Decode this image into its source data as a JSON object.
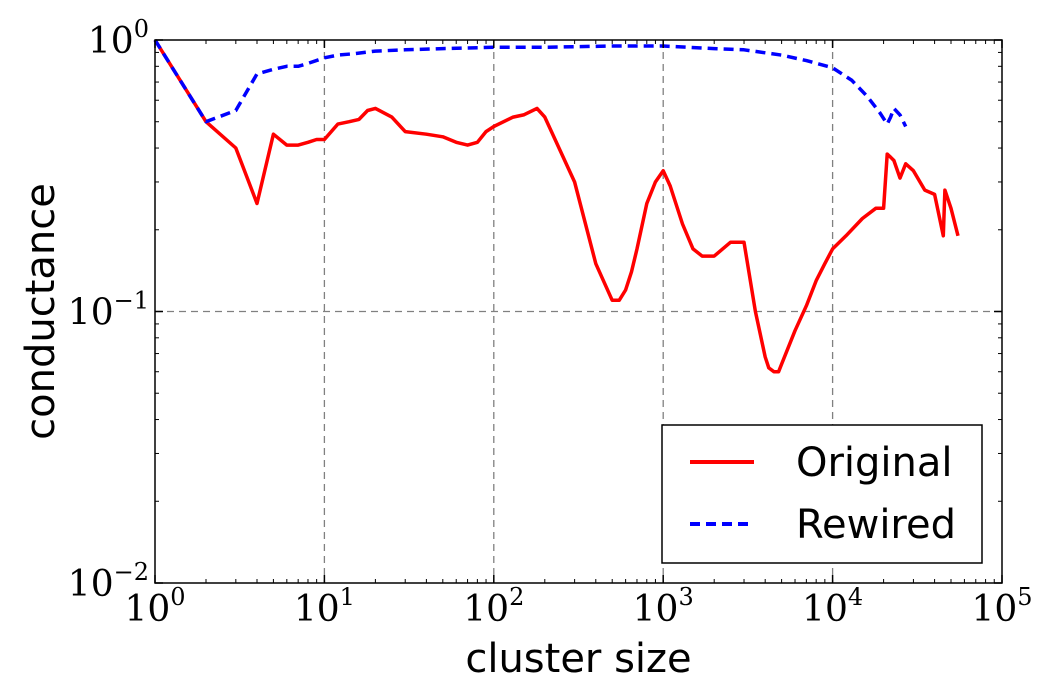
{
  "chart_data": {
    "type": "line",
    "title": "",
    "xlabel": "cluster size",
    "ylabel": "conductance",
    "xscale": "log",
    "yscale": "log",
    "xlim": [
      1,
      100000
    ],
    "ylim": [
      0.01,
      1
    ],
    "grid": true,
    "legend_position": "bottom-right",
    "x_ticks": [
      {
        "value": 1,
        "base": "10",
        "exp": "0"
      },
      {
        "value": 10,
        "base": "10",
        "exp": "1"
      },
      {
        "value": 100,
        "base": "10",
        "exp": "2"
      },
      {
        "value": 1000,
        "base": "10",
        "exp": "3"
      },
      {
        "value": 10000,
        "base": "10",
        "exp": "4"
      },
      {
        "value": 100000,
        "base": "10",
        "exp": "5"
      }
    ],
    "y_ticks": [
      {
        "value": 1,
        "base": "10",
        "exp": "0"
      },
      {
        "value": 0.1,
        "base": "10",
        "exp": "−1"
      },
      {
        "value": 0.01,
        "base": "10",
        "exp": "−2"
      }
    ],
    "series": [
      {
        "name": "Original",
        "color": "#ff0000",
        "style": "solid",
        "x": [
          1,
          2,
          3,
          4,
          5,
          6,
          7,
          8,
          9,
          10,
          12,
          14,
          16,
          18,
          20,
          25,
          30,
          40,
          50,
          60,
          70,
          80,
          90,
          100,
          130,
          150,
          180,
          200,
          300,
          400,
          500,
          550,
          600,
          650,
          700,
          800,
          900,
          1000,
          1100,
          1300,
          1500,
          1700,
          2000,
          2500,
          3000,
          3500,
          4000,
          4200,
          4500,
          4800,
          5000,
          6000,
          7000,
          8000,
          9000,
          10000,
          12000,
          15000,
          18000,
          20000,
          21000,
          22000,
          23000,
          25000,
          27000,
          30000,
          35000,
          40000,
          45000,
          46000,
          50000,
          55000
        ],
        "y": [
          1.0,
          0.5,
          0.4,
          0.25,
          0.45,
          0.41,
          0.41,
          0.42,
          0.43,
          0.43,
          0.49,
          0.5,
          0.51,
          0.55,
          0.56,
          0.52,
          0.46,
          0.45,
          0.44,
          0.42,
          0.41,
          0.42,
          0.46,
          0.48,
          0.52,
          0.53,
          0.56,
          0.52,
          0.3,
          0.15,
          0.11,
          0.11,
          0.12,
          0.14,
          0.17,
          0.25,
          0.3,
          0.33,
          0.29,
          0.21,
          0.17,
          0.16,
          0.16,
          0.18,
          0.18,
          0.1,
          0.068,
          0.062,
          0.06,
          0.06,
          0.064,
          0.085,
          0.105,
          0.13,
          0.15,
          0.17,
          0.19,
          0.22,
          0.24,
          0.24,
          0.38,
          0.37,
          0.36,
          0.31,
          0.35,
          0.33,
          0.28,
          0.27,
          0.19,
          0.28,
          0.24,
          0.19
        ]
      },
      {
        "name": "Rewired",
        "color": "#0000ff",
        "style": "dashed",
        "x": [
          1,
          2,
          3,
          4,
          5,
          6,
          7,
          8,
          10,
          12,
          15,
          20,
          30,
          50,
          100,
          200,
          500,
          1000,
          2000,
          3000,
          5000,
          7000,
          10000,
          13000,
          16000,
          19000,
          21000,
          22000,
          23000,
          25000,
          27000
        ],
        "y": [
          1.0,
          0.5,
          0.55,
          0.75,
          0.78,
          0.8,
          0.8,
          0.82,
          0.86,
          0.88,
          0.89,
          0.91,
          0.92,
          0.93,
          0.94,
          0.94,
          0.95,
          0.95,
          0.93,
          0.92,
          0.88,
          0.84,
          0.79,
          0.71,
          0.62,
          0.54,
          0.49,
          0.52,
          0.56,
          0.53,
          0.48
        ]
      }
    ]
  }
}
